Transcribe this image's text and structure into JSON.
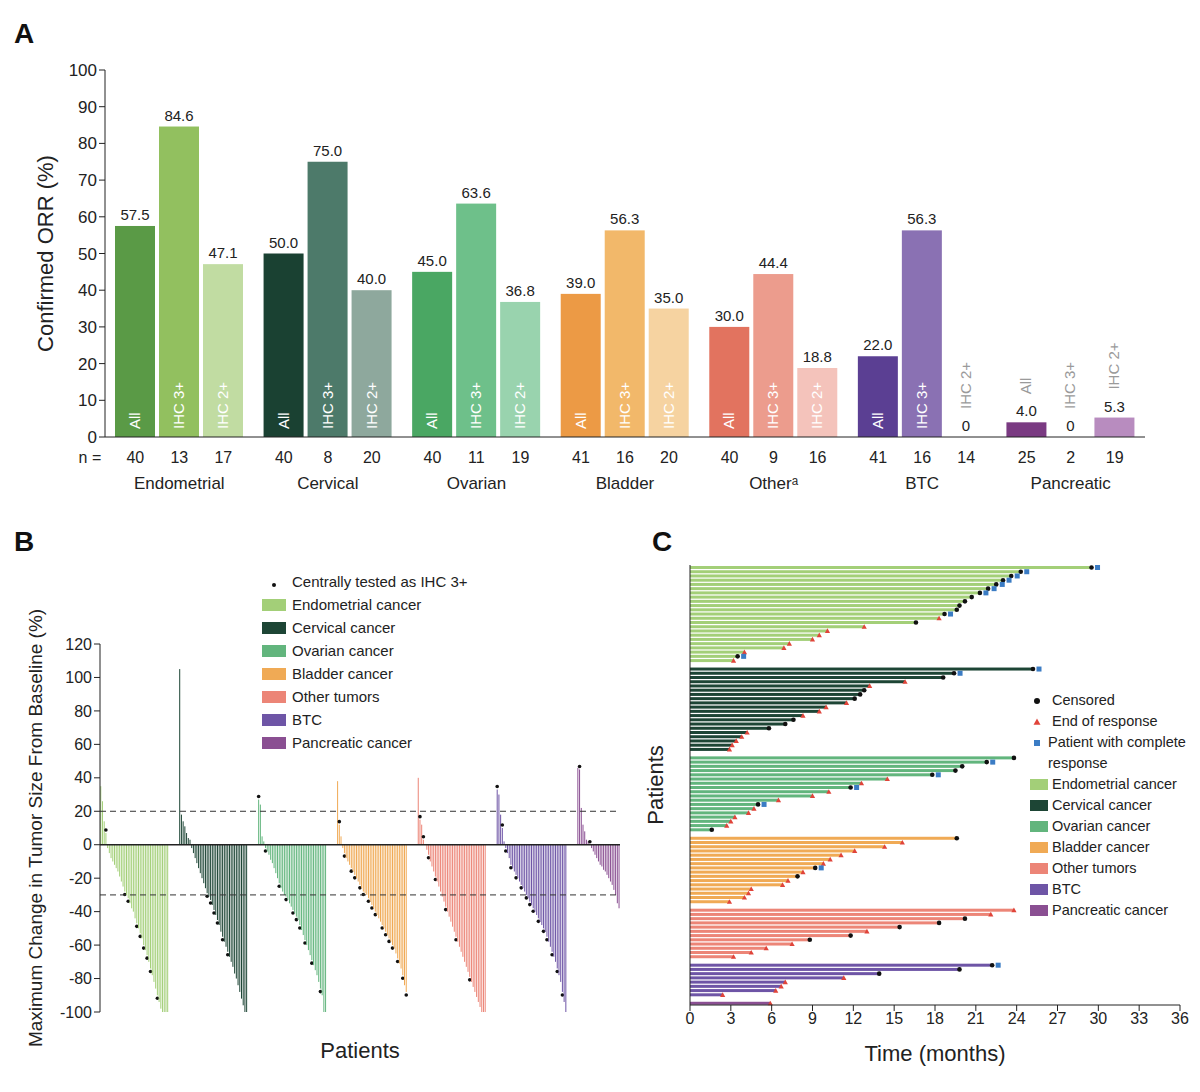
{
  "chart_data": [
    {
      "panel": "A",
      "type": "bar",
      "y_label": "Confirmed ORR (%)",
      "n_label": "n =",
      "categories": [
        "Endometrial",
        "Cervical",
        "Ovarian",
        "Bladder",
        "Otherᵃ",
        "BTC",
        "Pancreatic"
      ],
      "ylim": [
        0,
        100
      ],
      "yticks": [
        0,
        10,
        20,
        30,
        40,
        50,
        60,
        70,
        80,
        90,
        100
      ],
      "data_labels": true,
      "series": [
        {
          "name": "All",
          "colors": [
            "#5a9a46",
            "#1a4132",
            "#4aa763",
            "#ec9a45",
            "#e2735f",
            "#5b3f93",
            "#7a3a82"
          ],
          "values": [
            57.5,
            50.0,
            45.0,
            39.0,
            30.0,
            22.0,
            4.0
          ],
          "value_labels": [
            "57.5",
            "50.0",
            "45.0",
            "39.0",
            "30.0",
            "22.0",
            "4.0"
          ],
          "n": [
            40,
            40,
            40,
            41,
            40,
            41,
            25
          ]
        },
        {
          "name": "IHC 3+",
          "colors": [
            "#92c05f",
            "#4d7a6a",
            "#6ec08a",
            "#f2b86a",
            "#ec9c8d",
            "#8a71b3",
            "#a77bb0"
          ],
          "values": [
            84.6,
            75.0,
            63.6,
            56.3,
            44.4,
            56.3,
            0
          ],
          "value_labels": [
            "84.6",
            "75.0",
            "63.6",
            "56.3",
            "44.4",
            "56.3",
            "0"
          ],
          "n": [
            13,
            8,
            11,
            16,
            9,
            16,
            2
          ]
        },
        {
          "name": "IHC 2+",
          "colors": [
            "#c1dca2",
            "#8ea89d",
            "#99d3ae",
            "#f6d3a1",
            "#f4c3bb",
            "#c5b5d8",
            "#b88cbf"
          ],
          "values": [
            47.1,
            40.0,
            36.8,
            35.0,
            18.8,
            0,
            5.3
          ],
          "value_labels": [
            "47.1",
            "40.0",
            "36.8",
            "35.0",
            "18.8",
            "0",
            "5.3"
          ],
          "n": [
            17,
            20,
            19,
            20,
            16,
            14,
            19
          ]
        }
      ]
    },
    {
      "panel": "B",
      "type": "bar",
      "y_label": "Maximum Change in Tumor Size From Baseline (%)",
      "x_label": "Patients",
      "ylim": [
        -100,
        120
      ],
      "yticks": [
        -100,
        -80,
        -60,
        -40,
        -20,
        0,
        20,
        40,
        60,
        80,
        100,
        120
      ],
      "reference_lines": [
        20,
        -30
      ],
      "baseline": 0,
      "tick_labels": "y",
      "marker_label": "Centrally tested as IHC 3+",
      "series": [
        {
          "name": "Endometrial cancer",
          "color": "#a3cf78",
          "values": [
            35,
            26,
            14,
            7,
            -2,
            -5,
            -8,
            -10,
            -12,
            -14,
            -16,
            -19,
            -22,
            -25,
            -28,
            -30,
            -32,
            -35,
            -38,
            -40,
            -44,
            -47,
            -50,
            -53,
            -56,
            -60,
            -63,
            -66,
            -70,
            -74,
            -78,
            -82,
            -86,
            -90,
            -94,
            -98,
            -100,
            -100,
            -100,
            -100
          ],
          "ihc3_plus": [
            3,
            14,
            16,
            21,
            23,
            25,
            27,
            29,
            33,
            36,
            37,
            38,
            39
          ]
        },
        {
          "name": "Cervical cancer",
          "color": "#1d4535",
          "values": [
            105,
            18,
            14,
            11,
            7,
            4,
            3,
            -2,
            -5,
            -8,
            -11,
            -14,
            -17,
            -20,
            -23,
            -26,
            -29,
            -31,
            -33,
            -36,
            -39,
            -42,
            -45,
            -48,
            -52,
            -55,
            -58,
            -61,
            -64,
            -67,
            -70,
            -73,
            -77,
            -80,
            -84,
            -88,
            -92,
            -96,
            -100,
            -100
          ],
          "ihc3_plus": [
            16,
            18,
            20,
            22,
            25,
            28,
            38,
            39
          ]
        },
        {
          "name": "Ovarian cancer",
          "color": "#62b57d",
          "values": [
            27,
            24,
            5,
            2,
            -2,
            -4,
            -6,
            -9,
            -11,
            -14,
            -17,
            -20,
            -23,
            -26,
            -28,
            -30,
            -31,
            -33,
            -35,
            -37,
            -39,
            -41,
            -43,
            -45,
            -48,
            -51,
            -54,
            -57,
            -60,
            -63,
            -66,
            -69,
            -72,
            -75,
            -78,
            -82,
            -86,
            -90,
            -100,
            -100
          ],
          "ihc3_plus": [
            0,
            4,
            12,
            16,
            20,
            22,
            24,
            27,
            31,
            36,
            39
          ]
        },
        {
          "name": "Bladder cancer",
          "color": "#f0aa55",
          "values": [
            38,
            12,
            5,
            -2,
            -5,
            -8,
            -10,
            -12,
            -14,
            -16,
            -18,
            -20,
            -22,
            -24,
            -26,
            -28,
            -29,
            -30,
            -32,
            -34,
            -36,
            -38,
            -40,
            -42,
            -44,
            -46,
            -48,
            -50,
            -52,
            -54,
            -56,
            -58,
            -60,
            -62,
            -65,
            -68,
            -71,
            -74,
            -78,
            -84,
            -88
          ],
          "ihc3_plus": [
            1,
            4,
            8,
            10,
            13,
            15,
            18,
            20,
            22,
            26,
            28,
            30,
            32,
            35,
            38,
            40
          ]
        },
        {
          "name": "Other tumors",
          "color": "#ec8577",
          "values": [
            40,
            15,
            12,
            3,
            0,
            -3,
            -6,
            -10,
            -13,
            -16,
            -19,
            -22,
            -25,
            -28,
            -31,
            -34,
            -37,
            -40,
            -43,
            -46,
            -49,
            -52,
            -55,
            -58,
            -61,
            -64,
            -67,
            -70,
            -73,
            -76,
            -79,
            -82,
            -85,
            -88,
            -91,
            -94,
            -97,
            -100,
            -100,
            -100
          ],
          "ihc3_plus": [
            1,
            3,
            6,
            10,
            16,
            22,
            30,
            37,
            38
          ]
        },
        {
          "name": "BTC",
          "color": "#6e55a6",
          "values": [
            33,
            30,
            18,
            10,
            2,
            -2,
            -5,
            -8,
            -12,
            -14,
            -16,
            -18,
            -20,
            -22,
            -24,
            -26,
            -28,
            -30,
            -32,
            -34,
            -36,
            -38,
            -40,
            -42,
            -44,
            -46,
            -48,
            -50,
            -52,
            -55,
            -58,
            -61,
            -64,
            -67,
            -70,
            -74,
            -78,
            -82,
            -88,
            -94,
            -100
          ],
          "ihc3_plus": [
            0,
            3,
            5,
            8,
            11,
            14,
            17,
            19,
            21,
            24,
            27,
            29,
            32,
            35,
            38,
            40
          ]
        },
        {
          "name": "Pancreatic cancer",
          "color": "#8a4f92",
          "values": [
            46,
            45,
            22,
            12,
            8,
            3,
            2,
            0,
            -2,
            -4,
            -6,
            -8,
            -10,
            -12,
            -13,
            -15,
            -16,
            -18,
            -20,
            -22,
            -24,
            -27,
            -30,
            -35,
            -38
          ],
          "ihc3_plus": [
            1,
            7
          ]
        }
      ]
    },
    {
      "panel": "C",
      "type": "bar",
      "orientation": "horizontal",
      "x_label": "Time (months)",
      "y_label": "Patients",
      "xlim": [
        0,
        36
      ],
      "xticks": [
        0,
        3,
        6,
        9,
        12,
        15,
        18,
        21,
        24,
        27,
        30,
        33,
        36
      ],
      "tick_labels": "x",
      "markers": {
        "censored": "Censored",
        "end": "End of response",
        "complete_response": "Patient with complete response"
      },
      "series": [
        {
          "name": "Endometrial cancer",
          "color": "#a3cf78",
          "values": [
            29.5,
            24.3,
            23.6,
            23.0,
            22.5,
            21.9,
            21.3,
            20.7,
            20.2,
            19.8,
            19.6,
            18.7,
            18.3,
            16.6,
            12.8,
            10.1,
            9.5,
            9.0,
            7.3,
            6.9,
            4.0,
            3.5,
            3.2
          ],
          "status": [
            "censored",
            "censored",
            "censored",
            "censored",
            "censored",
            "censored",
            "censored",
            "censored",
            "censored",
            "censored",
            "censored",
            "censored",
            "end",
            "censored",
            "end",
            "end",
            "end",
            "end",
            "end",
            "end",
            "end",
            "censored",
            "end"
          ],
          "complete_response": [
            0,
            1,
            2,
            3,
            4,
            5,
            6,
            11,
            21
          ]
        },
        {
          "name": "Cervical cancer",
          "color": "#1d4535",
          "values": [
            25.2,
            19.4,
            18.6,
            15.8,
            13.2,
            12.8,
            12.5,
            12.1,
            11.5,
            10.0,
            9.5,
            8.3,
            7.6,
            7.0,
            5.8,
            4.2,
            3.8,
            3.4,
            3.1,
            2.9
          ],
          "status": [
            "censored",
            "censored",
            "censored",
            "end",
            "end",
            "censored",
            "censored",
            "censored",
            "end",
            "end",
            "end",
            "end",
            "censored",
            "censored",
            "censored",
            "end",
            "end",
            "end",
            "end",
            "end"
          ],
          "complete_response": [
            0,
            1
          ]
        },
        {
          "name": "Ovarian cancer",
          "color": "#62b57d",
          "values": [
            23.8,
            21.8,
            20.0,
            19.5,
            17.8,
            14.5,
            12.6,
            11.8,
            10.2,
            9.0,
            6.5,
            5.0,
            4.7,
            4.3,
            3.3,
            3.0,
            2.7,
            1.6
          ],
          "status": [
            "censored",
            "censored",
            "censored",
            "censored",
            "censored",
            "end",
            "end",
            "censored",
            "end",
            "end",
            "end",
            "censored",
            "end",
            "end",
            "end",
            "end",
            "end",
            "censored"
          ],
          "complete_response": [
            1,
            4,
            7,
            11
          ]
        },
        {
          "name": "Bladder cancer",
          "color": "#f0aa55",
          "values": [
            19.6,
            15.6,
            14.3,
            12.1,
            11.1,
            10.3,
            9.8,
            9.2,
            8.3,
            7.9,
            7.2,
            6.8,
            4.5,
            4.3,
            4.0,
            2.9
          ],
          "status": [
            "censored",
            "end",
            "end",
            "end",
            "end",
            "end",
            "end",
            "censored",
            "end",
            "censored",
            "end",
            "end",
            "end",
            "end",
            "end",
            "end"
          ],
          "complete_response": [
            7
          ]
        },
        {
          "name": "Other tumors",
          "color": "#ec8577",
          "values": [
            23.8,
            22.1,
            20.2,
            18.3,
            15.4,
            13.0,
            11.8,
            8.8,
            7.5,
            5.6,
            4.5,
            3.2
          ],
          "status": [
            "end",
            "end",
            "censored",
            "censored",
            "censored",
            "end",
            "censored",
            "censored",
            "end",
            "end",
            "end",
            "end"
          ],
          "complete_response": []
        },
        {
          "name": "BTC",
          "color": "#6e55a6",
          "values": [
            22.2,
            19.8,
            13.9,
            11.3,
            7.0,
            6.7,
            6.3,
            2.4
          ],
          "status": [
            "censored",
            "censored",
            "censored",
            "end",
            "end",
            "end",
            "end",
            "end"
          ],
          "complete_response": [
            0
          ]
        },
        {
          "name": "Pancreatic cancer",
          "color": "#8a4f92",
          "values": [
            5.9
          ],
          "status": [
            "end"
          ],
          "complete_response": []
        }
      ]
    }
  ]
}
